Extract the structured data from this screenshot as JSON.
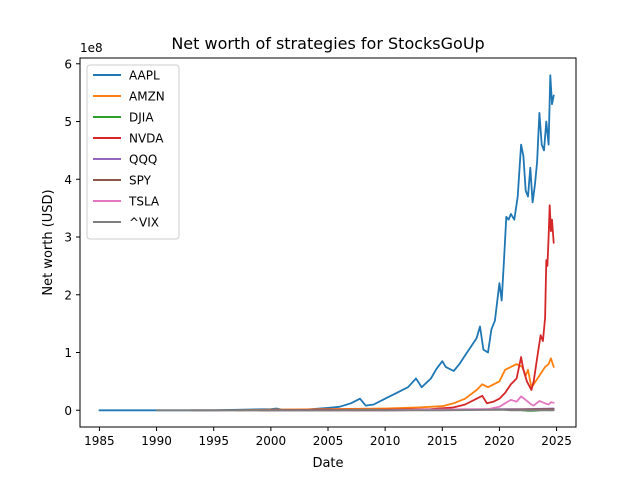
{
  "chart_data": {
    "type": "line",
    "title": "Net worth of strategies for StocksGoUp",
    "xlabel": "Date",
    "ylabel": "Net worth (USD)",
    "y_offset_label": "1e8",
    "x_unit": "year",
    "xlim": [
      1983.3,
      2026.7
    ],
    "ylim": [
      -0.29,
      6.1
    ],
    "x_ticks": [
      1985,
      1990,
      1995,
      2000,
      2005,
      2010,
      2015,
      2020,
      2025
    ],
    "x_tick_labels": [
      "1985",
      "1990",
      "1995",
      "2000",
      "2005",
      "2010",
      "2015",
      "2020",
      "2025"
    ],
    "y_ticks": [
      0,
      1,
      2,
      3,
      4,
      5,
      6
    ],
    "y_tick_labels": [
      "0",
      "1",
      "2",
      "3",
      "4",
      "5",
      "6"
    ],
    "grid": false,
    "legend_position": "top-left",
    "series": [
      {
        "name": "AAPL",
        "color": "#1f77b4",
        "x": [
          1985.0,
          1990.0,
          1995.0,
          2000.0,
          2000.5,
          2001.0,
          2003.0,
          2005.0,
          2006.0,
          2007.0,
          2007.8,
          2008.3,
          2009.0,
          2010.0,
          2011.0,
          2012.0,
          2012.7,
          2013.2,
          2014.0,
          2014.5,
          2015.0,
          2015.3,
          2016.0,
          2016.5,
          2017.0,
          2017.5,
          2018.0,
          2018.3,
          2018.6,
          2019.0,
          2019.3,
          2019.6,
          2020.0,
          2020.2,
          2020.4,
          2020.6,
          2020.8,
          2021.0,
          2021.3,
          2021.6,
          2021.9,
          2022.1,
          2022.3,
          2022.5,
          2022.7,
          2022.9,
          2023.1,
          2023.3,
          2023.5,
          2023.7,
          2023.9,
          2024.1,
          2024.3,
          2024.45,
          2024.6,
          2024.75
        ],
        "y": [
          0.0,
          0.0,
          0.0,
          0.02,
          0.03,
          0.01,
          0.01,
          0.04,
          0.06,
          0.12,
          0.2,
          0.08,
          0.1,
          0.2,
          0.3,
          0.4,
          0.55,
          0.4,
          0.55,
          0.72,
          0.85,
          0.75,
          0.68,
          0.8,
          0.95,
          1.1,
          1.25,
          1.45,
          1.05,
          1.0,
          1.4,
          1.55,
          2.2,
          1.9,
          2.6,
          3.35,
          3.3,
          3.4,
          3.3,
          3.7,
          4.6,
          4.4,
          3.8,
          3.7,
          4.2,
          3.6,
          3.9,
          4.3,
          5.15,
          4.6,
          4.5,
          5.0,
          4.6,
          5.8,
          5.3,
          5.45
        ]
      },
      {
        "name": "AMZN",
        "color": "#ff7f0e",
        "x": [
          1997.0,
          2000.0,
          2005.0,
          2010.0,
          2013.0,
          2015.0,
          2016.0,
          2017.0,
          2018.0,
          2018.5,
          2019.0,
          2019.5,
          2020.0,
          2020.5,
          2021.0,
          2021.5,
          2022.0,
          2022.3,
          2022.5,
          2022.8,
          2023.0,
          2023.5,
          2024.0,
          2024.3,
          2024.5,
          2024.75
        ],
        "y": [
          0.0,
          0.01,
          0.02,
          0.03,
          0.05,
          0.07,
          0.12,
          0.2,
          0.35,
          0.45,
          0.4,
          0.45,
          0.5,
          0.7,
          0.75,
          0.8,
          0.75,
          0.6,
          0.7,
          0.4,
          0.45,
          0.6,
          0.75,
          0.8,
          0.9,
          0.75
        ]
      },
      {
        "name": "DJIA",
        "color": "#2ca02c",
        "x": [
          2022.0,
          2022.5,
          2023.0,
          2023.5,
          2024.0,
          2024.5,
          2024.75
        ],
        "y": [
          0.0,
          -0.01,
          -0.01,
          0.0,
          0.01,
          0.0,
          0.01
        ]
      },
      {
        "name": "NVDA",
        "color": "#d62728",
        "x": [
          1999.0,
          2005.0,
          2010.0,
          2014.0,
          2016.0,
          2017.0,
          2018.0,
          2018.5,
          2018.9,
          2019.5,
          2020.0,
          2020.5,
          2021.0,
          2021.5,
          2021.9,
          2022.1,
          2022.4,
          2022.8,
          2023.0,
          2023.3,
          2023.6,
          2023.8,
          2024.0,
          2024.1,
          2024.2,
          2024.3,
          2024.4,
          2024.5,
          2024.6,
          2024.75
        ],
        "y": [
          0.0,
          0.01,
          0.01,
          0.02,
          0.05,
          0.1,
          0.2,
          0.25,
          0.12,
          0.15,
          0.2,
          0.3,
          0.45,
          0.55,
          0.92,
          0.7,
          0.5,
          0.35,
          0.5,
          0.9,
          1.3,
          1.2,
          1.6,
          2.6,
          2.5,
          3.0,
          3.55,
          3.1,
          3.3,
          2.9
        ]
      },
      {
        "name": "QQQ",
        "color": "#9467bd",
        "x": [
          1999.0,
          2005.0,
          2010.0,
          2015.0,
          2020.0,
          2022.0,
          2024.75
        ],
        "y": [
          0.0,
          0.0,
          0.0,
          0.01,
          0.02,
          0.02,
          0.03
        ]
      },
      {
        "name": "SPY",
        "color": "#8c564b",
        "x": [
          1993.0,
          2000.0,
          2005.0,
          2010.0,
          2015.0,
          2020.0,
          2024.75
        ],
        "y": [
          0.0,
          0.0,
          0.0,
          0.0,
          0.01,
          0.01,
          0.02
        ]
      },
      {
        "name": "TSLA",
        "color": "#e377c2",
        "x": [
          2010.5,
          2013.0,
          2015.0,
          2017.0,
          2019.0,
          2020.0,
          2020.5,
          2021.0,
          2021.5,
          2021.9,
          2022.3,
          2022.8,
          2023.0,
          2023.5,
          2024.0,
          2024.3,
          2024.5,
          2024.75
        ],
        "y": [
          0.0,
          0.01,
          0.01,
          0.02,
          0.02,
          0.06,
          0.12,
          0.18,
          0.15,
          0.24,
          0.18,
          0.1,
          0.08,
          0.16,
          0.12,
          0.1,
          0.14,
          0.13
        ]
      },
      {
        "name": "^VIX",
        "color": "#7f7f7f",
        "x": [
          1990.0,
          1995.0,
          2000.0,
          2005.0,
          2008.8,
          2010.0,
          2015.0,
          2020.2,
          2021.0,
          2024.75
        ],
        "y": [
          0.0,
          0.0,
          0.0,
          0.0,
          0.01,
          0.0,
          0.0,
          0.01,
          0.0,
          0.0
        ]
      }
    ]
  }
}
